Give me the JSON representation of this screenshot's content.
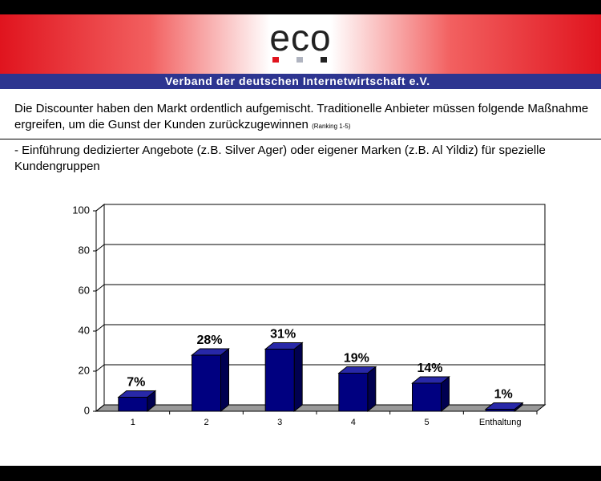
{
  "header": {
    "logo": "eco",
    "subtitle": "Verband der deutschen Internetwirtschaft e.V."
  },
  "question": {
    "text": "Die Discounter haben den Markt ordentlich aufgemischt. Traditionelle Anbieter müssen folgende Maßnahme ergreifen, um die Gunst der Kunden zurückzugewinnen",
    "note": "(Ranking 1-5)",
    "option": "- Einführung dedizierter Angebote (z.B. Silver Ager) oder eigener Marken (z.B. Al Yildiz) für spezielle Kundengruppen"
  },
  "chart_data": {
    "type": "bar3d",
    "categories": [
      "1",
      "2",
      "3",
      "4",
      "5",
      "Enthaltung"
    ],
    "values": [
      7,
      28,
      31,
      19,
      14,
      1
    ],
    "value_labels": [
      "7%",
      "28%",
      "31%",
      "19%",
      "14%",
      "1%"
    ],
    "color": "#000080",
    "ylim": [
      0,
      100
    ],
    "yticks": [
      0,
      20,
      40,
      60,
      80,
      100
    ],
    "grid": true
  }
}
